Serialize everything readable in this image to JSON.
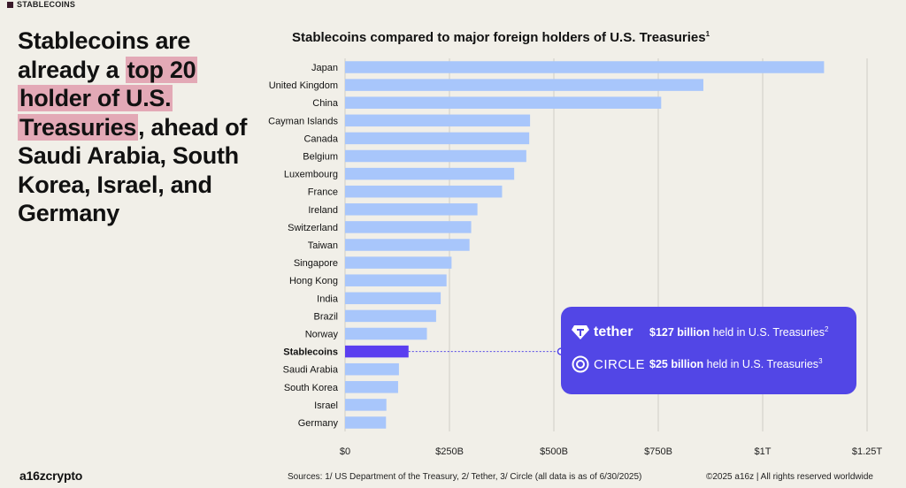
{
  "tag": "STABLECOINS",
  "headline": {
    "part1": "Stablecoins are already a ",
    "highlight": "top 20 holder of U.S. Treasuries",
    "part2": ", ahead of Saudi Arabia, South Korea, Israel, and Germany"
  },
  "chart_data": {
    "type": "bar",
    "orientation": "horizontal",
    "title": "Stablecoins compared to major foreign holders of U.S. Treasuries",
    "title_superscript": "1",
    "categories": [
      "Japan",
      "United Kingdom",
      "China",
      "Cayman Islands",
      "Canada",
      "Belgium",
      "Luxembourg",
      "France",
      "Ireland",
      "Switzerland",
      "Taiwan",
      "Singapore",
      "Hong Kong",
      "India",
      "Brazil",
      "Norway",
      "Stablecoins",
      "Saudi Arabia",
      "South Korea",
      "Israel",
      "Germany"
    ],
    "values": [
      1147,
      858,
      757,
      443,
      441,
      434,
      405,
      376,
      317,
      302,
      298,
      255,
      243,
      229,
      218,
      196,
      152,
      129,
      127,
      99,
      98
    ],
    "highlight_category": "Stablecoins",
    "xlim": [
      0,
      1250
    ],
    "xticks": [
      0,
      250,
      500,
      750,
      1000,
      1250
    ],
    "xtick_labels": [
      "$0",
      "$250B",
      "$500B",
      "$750B",
      "$1T",
      "$1.25T"
    ],
    "grid": true,
    "colors": {
      "bar": "#a8c6fb",
      "highlight": "#5b3ef0",
      "grid": "#cfcdc6"
    }
  },
  "callout": {
    "rows": [
      {
        "brand": "tether",
        "amount": "$127 billion",
        "text": " held in U.S. Treasuries",
        "sup": "2"
      },
      {
        "brand": "CIRCLE",
        "amount": "$25 billion",
        "text": " held in U.S. Treasuries",
        "sup": "3"
      }
    ],
    "color": "#5246e6"
  },
  "footer": {
    "logo": "a16zcrypto",
    "sources": "Sources: 1/ US Department of the Treasury, 2/ Tether, 3/ Circle (all data is as of 6/30/2025)",
    "copyright": "©2025 a16z | All rights reserved worldwide"
  }
}
